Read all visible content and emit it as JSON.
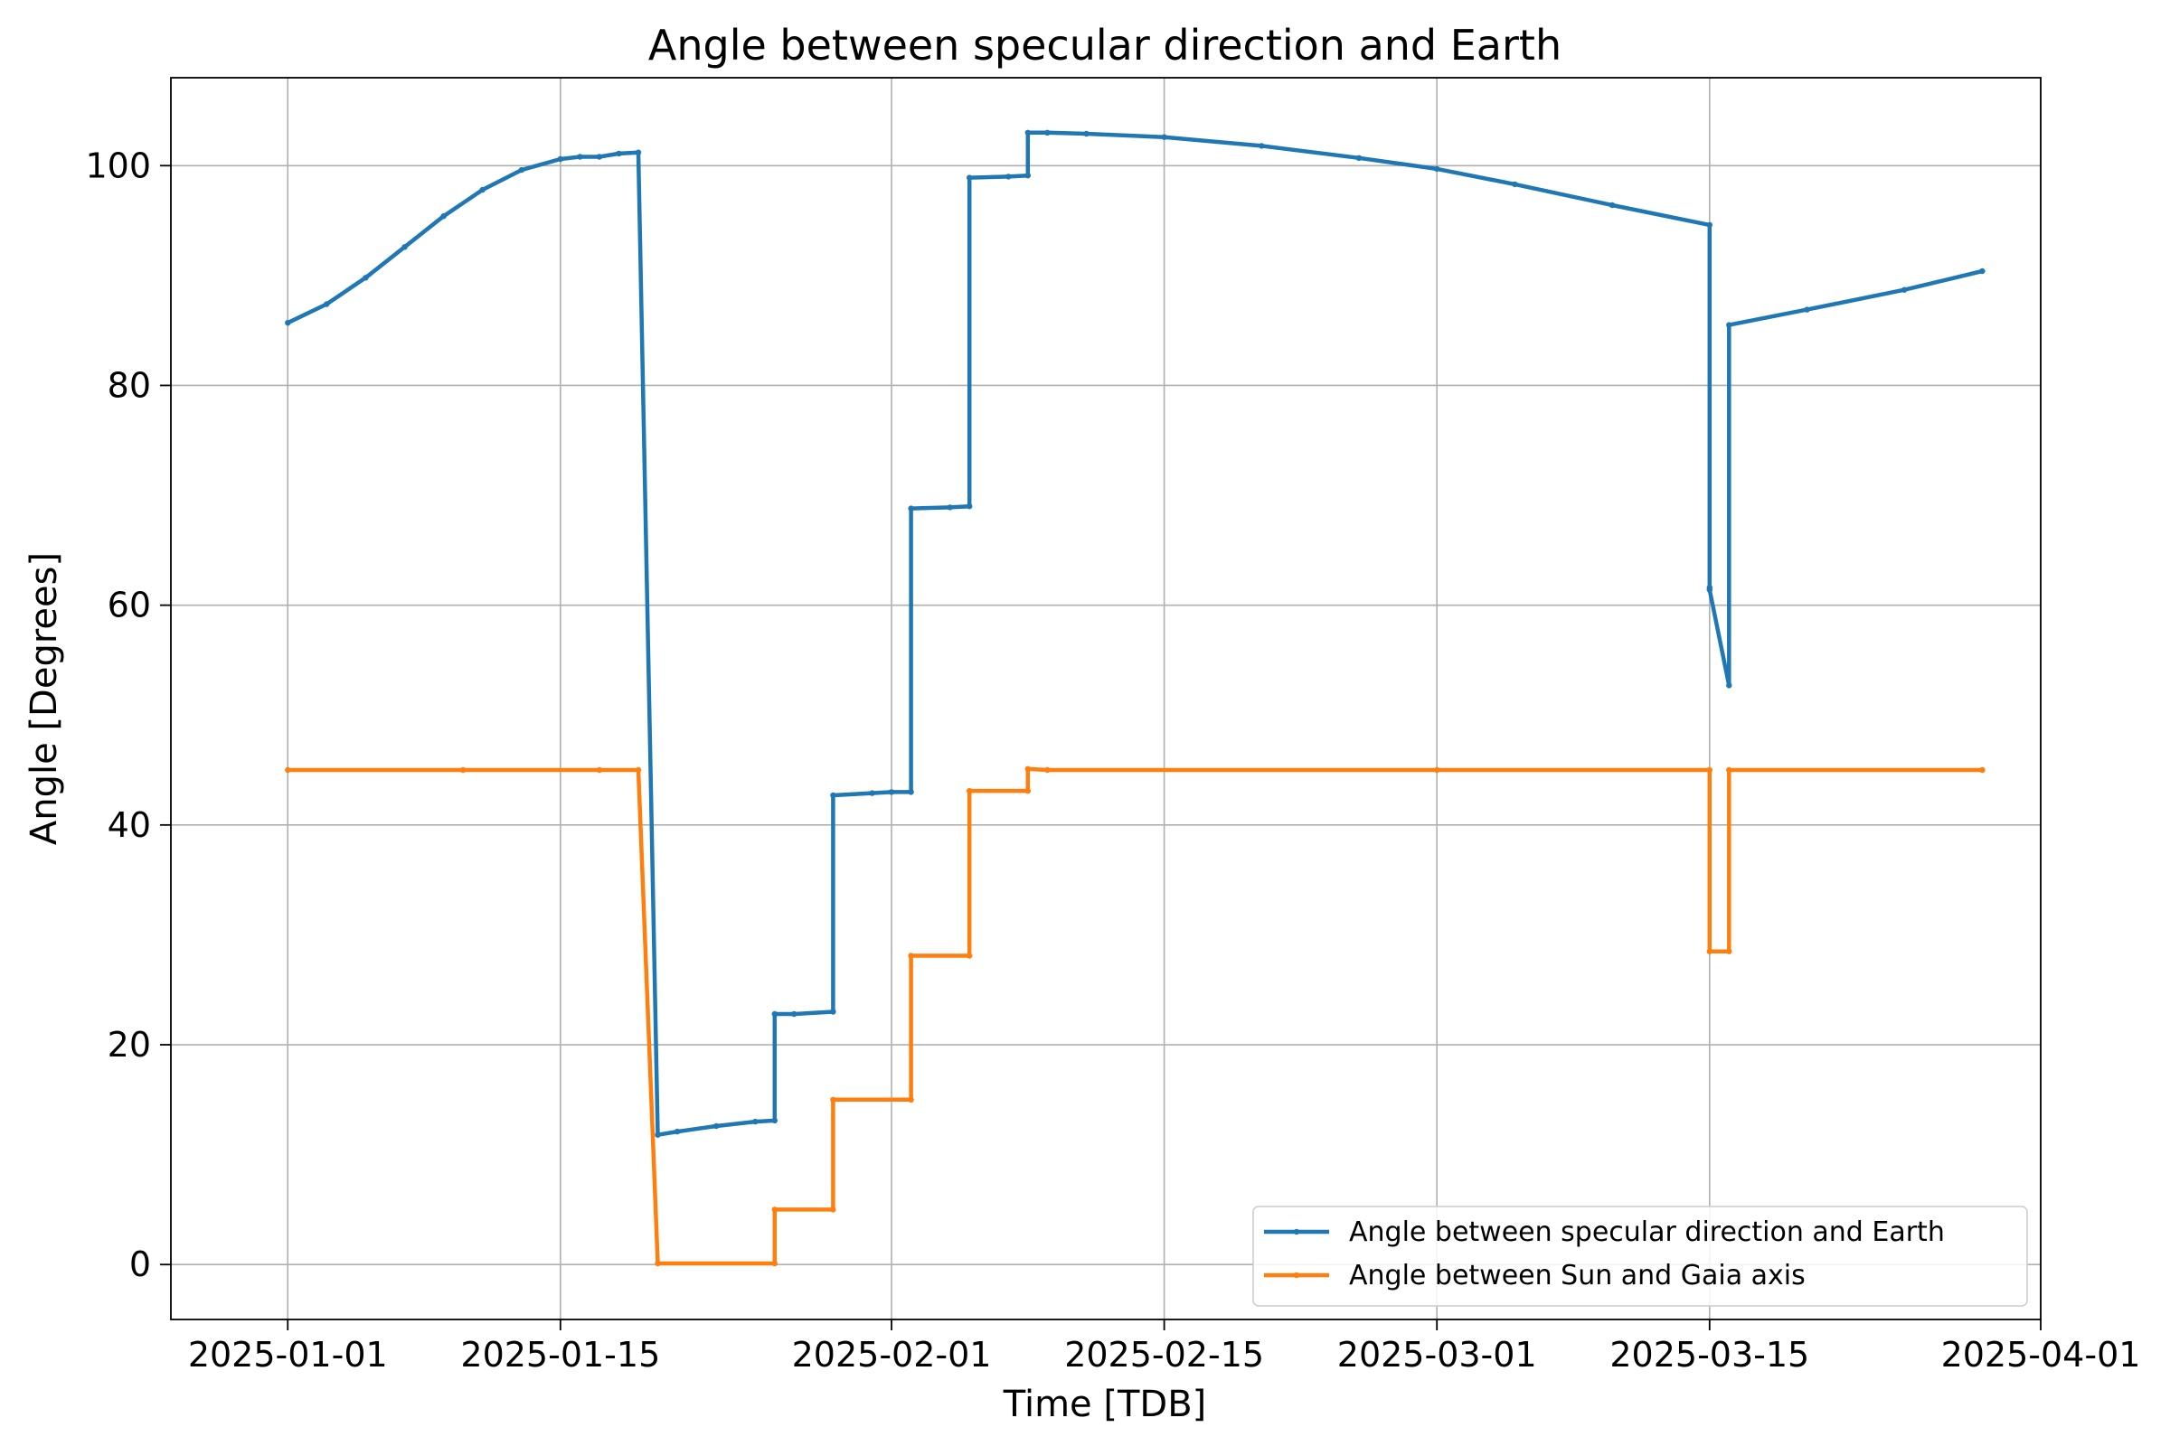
{
  "chart_data": {
    "type": "line",
    "title": "Angle between specular direction and Earth",
    "xlabel": "Time [TDB]",
    "ylabel": "Angle [Degrees]",
    "x_ticks": [
      "2025-01-01",
      "2025-01-15",
      "2025-02-01",
      "2025-02-15",
      "2025-03-01",
      "2025-03-15",
      "2025-04-01"
    ],
    "y_ticks": [
      0,
      20,
      40,
      60,
      80,
      100
    ],
    "xlim": [
      "2024-12-26",
      "2025-04-01"
    ],
    "ylim": [
      -5,
      108
    ],
    "grid": true,
    "legend_position": "lower-right",
    "series": [
      {
        "name": "Angle between specular direction and Earth",
        "color": "#1f77b4",
        "points": [
          [
            "2025-01-01",
            85.7
          ],
          [
            "2025-01-03",
            87.4
          ],
          [
            "2025-01-05",
            89.8
          ],
          [
            "2025-01-07",
            92.6
          ],
          [
            "2025-01-09",
            95.4
          ],
          [
            "2025-01-11",
            97.8
          ],
          [
            "2025-01-13",
            99.6
          ],
          [
            "2025-01-15",
            100.6
          ],
          [
            "2025-01-16",
            100.8
          ],
          [
            "2025-01-17",
            100.8
          ],
          [
            "2025-01-18",
            101.1
          ],
          [
            "2025-01-19",
            101.2
          ],
          [
            "2025-01-20",
            11.8
          ],
          [
            "2025-01-21",
            12.1
          ],
          [
            "2025-01-23",
            12.6
          ],
          [
            "2025-01-25",
            13.0
          ],
          [
            "2025-01-26",
            13.1
          ],
          [
            "2025-01-26",
            22.8
          ],
          [
            "2025-01-27",
            22.8
          ],
          [
            "2025-01-29",
            23.0
          ],
          [
            "2025-01-29",
            42.7
          ],
          [
            "2025-01-31",
            42.9
          ],
          [
            "2025-02-01",
            43.0
          ],
          [
            "2025-02-02",
            43.0
          ],
          [
            "2025-02-02",
            68.8
          ],
          [
            "2025-02-04",
            68.9
          ],
          [
            "2025-02-05",
            69.0
          ],
          [
            "2025-02-05",
            98.9
          ],
          [
            "2025-02-07",
            99.0
          ],
          [
            "2025-02-08",
            99.1
          ],
          [
            "2025-02-08",
            103.0
          ],
          [
            "2025-02-09",
            103.0
          ],
          [
            "2025-02-11",
            102.9
          ],
          [
            "2025-02-15",
            102.6
          ],
          [
            "2025-02-20",
            101.8
          ],
          [
            "2025-02-25",
            100.7
          ],
          [
            "2025-03-01",
            99.7
          ],
          [
            "2025-03-05",
            98.3
          ],
          [
            "2025-03-10",
            96.4
          ],
          [
            "2025-03-15",
            94.6
          ],
          [
            "2025-03-15",
            61.6
          ],
          [
            "2025-03-15",
            61.4
          ],
          [
            "2025-03-16",
            52.7
          ],
          [
            "2025-03-16",
            85.5
          ],
          [
            "2025-03-20",
            86.9
          ],
          [
            "2025-03-25",
            88.7
          ],
          [
            "2025-03-29",
            90.4
          ]
        ]
      },
      {
        "name": "Angle between Sun and Gaia axis",
        "color": "#ff7f0e",
        "points": [
          [
            "2025-01-01",
            45.0
          ],
          [
            "2025-01-10",
            45.0
          ],
          [
            "2025-01-17",
            45.0
          ],
          [
            "2025-01-19",
            45.0
          ],
          [
            "2025-01-20",
            0.1
          ],
          [
            "2025-01-26",
            0.1
          ],
          [
            "2025-01-26",
            5.0
          ],
          [
            "2025-01-29",
            5.0
          ],
          [
            "2025-01-29",
            15.0
          ],
          [
            "2025-02-02",
            15.0
          ],
          [
            "2025-02-02",
            28.1
          ],
          [
            "2025-02-05",
            28.1
          ],
          [
            "2025-02-05",
            43.1
          ],
          [
            "2025-02-08",
            43.1
          ],
          [
            "2025-02-08",
            45.1
          ],
          [
            "2025-02-09",
            45.0
          ],
          [
            "2025-03-01",
            45.0
          ],
          [
            "2025-03-15",
            45.0
          ],
          [
            "2025-03-15",
            28.5
          ],
          [
            "2025-03-16",
            28.5
          ],
          [
            "2025-03-16",
            45.0
          ],
          [
            "2025-03-29",
            45.0
          ]
        ]
      }
    ]
  }
}
